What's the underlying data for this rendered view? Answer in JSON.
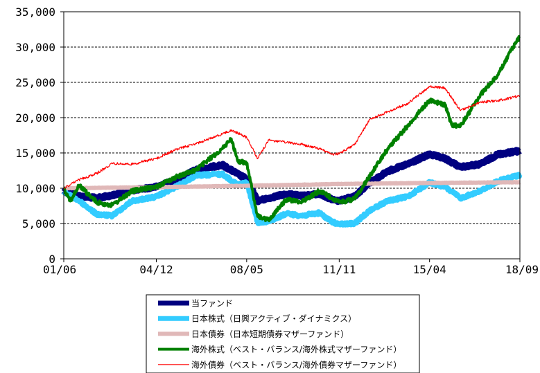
{
  "chart_data": {
    "type": "line",
    "title": "",
    "xlabel": "",
    "ylabel": "",
    "ylim": [
      0,
      35000
    ],
    "yticks": [
      0,
      5000,
      10000,
      15000,
      20000,
      25000,
      30000,
      35000
    ],
    "ytick_labels": [
      "0",
      "5,000",
      "10,000",
      "15,000",
      "20,000",
      "25,000",
      "30,000",
      "35,000"
    ],
    "x_start": "2001-06",
    "x_end": "2018-09",
    "xticks": [
      "2001-06",
      "2004-12",
      "2008-05",
      "2011-11",
      "2015-04",
      "2018-09"
    ],
    "xtick_labels": [
      "01/06",
      "04/12",
      "08/05",
      "11/11",
      "15/04",
      "18/09"
    ],
    "grid": "horizontal-dashed",
    "legend_position": "bottom",
    "series": [
      {
        "name": "当ファンド",
        "color": "#000080",
        "line_width": 9,
        "points": [
          [
            "2001-06",
            9600
          ],
          [
            "2002-01",
            8900
          ],
          [
            "2002-09",
            8600
          ],
          [
            "2003-04",
            9000
          ],
          [
            "2004-01",
            9700
          ],
          [
            "2004-12",
            10200
          ],
          [
            "2005-09",
            11200
          ],
          [
            "2006-06",
            12600
          ],
          [
            "2007-06",
            13300
          ],
          [
            "2008-01",
            12000
          ],
          [
            "2008-05",
            11300
          ],
          [
            "2008-10",
            8200
          ],
          [
            "2009-03",
            8600
          ],
          [
            "2009-11",
            9200
          ],
          [
            "2010-06",
            8900
          ],
          [
            "2011-02",
            9200
          ],
          [
            "2011-08",
            8400
          ],
          [
            "2011-11",
            8200
          ],
          [
            "2012-06",
            8900
          ],
          [
            "2013-01",
            10800
          ],
          [
            "2013-09",
            12400
          ],
          [
            "2014-06",
            13400
          ],
          [
            "2015-04",
            14800
          ],
          [
            "2015-11",
            14200
          ],
          [
            "2016-06",
            13000
          ],
          [
            "2017-03",
            13400
          ],
          [
            "2017-11",
            14800
          ],
          [
            "2018-09",
            15300
          ]
        ]
      },
      {
        "name": "日本株式（日興アクティブ・ダイナミクス）",
        "color": "#33ccff",
        "line_width": 7,
        "points": [
          [
            "2001-06",
            9500
          ],
          [
            "2002-01",
            8200
          ],
          [
            "2002-09",
            6300
          ],
          [
            "2003-04",
            6100
          ],
          [
            "2004-01",
            8200
          ],
          [
            "2004-12",
            8800
          ],
          [
            "2005-09",
            10200
          ],
          [
            "2006-06",
            11800
          ],
          [
            "2007-06",
            12000
          ],
          [
            "2008-01",
            10500
          ],
          [
            "2008-05",
            10800
          ],
          [
            "2008-10",
            5100
          ],
          [
            "2009-03",
            5300
          ],
          [
            "2009-11",
            6400
          ],
          [
            "2010-06",
            6100
          ],
          [
            "2011-02",
            6500
          ],
          [
            "2011-08",
            5200
          ],
          [
            "2011-11",
            4900
          ],
          [
            "2012-06",
            5000
          ],
          [
            "2013-01",
            6900
          ],
          [
            "2013-09",
            8200
          ],
          [
            "2014-06",
            8800
          ],
          [
            "2015-04",
            10800
          ],
          [
            "2015-11",
            10200
          ],
          [
            "2016-06",
            8600
          ],
          [
            "2017-03",
            9600
          ],
          [
            "2017-11",
            11000
          ],
          [
            "2018-09",
            11900
          ]
        ]
      },
      {
        "name": "日本債券（日本短期債券マザーファンド）",
        "color": "#e0b8b8",
        "line_width": 6,
        "points": [
          [
            "2001-06",
            10000
          ],
          [
            "2004-12",
            10150
          ],
          [
            "2008-05",
            10350
          ],
          [
            "2011-11",
            10600
          ],
          [
            "2015-04",
            10750
          ],
          [
            "2018-09",
            10850
          ]
        ]
      },
      {
        "name": "海外株式（ベスト・バランス/海外株式マザーファンド）",
        "color": "#008000",
        "line_width": 4,
        "points": [
          [
            "2001-06",
            10000
          ],
          [
            "2001-09",
            8200
          ],
          [
            "2002-01",
            10400
          ],
          [
            "2002-09",
            8000
          ],
          [
            "2003-04",
            7600
          ],
          [
            "2004-01",
            9600
          ],
          [
            "2004-12",
            10200
          ],
          [
            "2005-09",
            11600
          ],
          [
            "2006-06",
            12600
          ],
          [
            "2007-06",
            15600
          ],
          [
            "2007-10",
            17000
          ],
          [
            "2008-01",
            13800
          ],
          [
            "2008-05",
            13600
          ],
          [
            "2008-10",
            6000
          ],
          [
            "2009-03",
            5500
          ],
          [
            "2009-11",
            8400
          ],
          [
            "2010-06",
            8100
          ],
          [
            "2011-02",
            9600
          ],
          [
            "2011-08",
            8600
          ],
          [
            "2011-11",
            8000
          ],
          [
            "2012-06",
            8500
          ],
          [
            "2013-01",
            11800
          ],
          [
            "2013-09",
            15600
          ],
          [
            "2014-06",
            18800
          ],
          [
            "2015-04",
            22500
          ],
          [
            "2015-11",
            21800
          ],
          [
            "2016-02",
            19000
          ],
          [
            "2016-06",
            18800
          ],
          [
            "2017-03",
            23200
          ],
          [
            "2017-11",
            26000
          ],
          [
            "2018-05",
            29500
          ],
          [
            "2018-09",
            31500
          ]
        ]
      },
      {
        "name": "海外債券（ベスト・バランス/海外債券マザーファンド）",
        "color": "#ff0000",
        "line_width": 1.2,
        "points": [
          [
            "2001-06",
            10000
          ],
          [
            "2002-01",
            11200
          ],
          [
            "2002-09",
            12100
          ],
          [
            "2003-04",
            13500
          ],
          [
            "2004-01",
            13400
          ],
          [
            "2004-12",
            14200
          ],
          [
            "2005-09",
            15500
          ],
          [
            "2006-06",
            16300
          ],
          [
            "2007-06",
            17700
          ],
          [
            "2007-10",
            18200
          ],
          [
            "2008-01",
            17800
          ],
          [
            "2008-05",
            17200
          ],
          [
            "2008-10",
            14200
          ],
          [
            "2009-03",
            16800
          ],
          [
            "2009-11",
            16500
          ],
          [
            "2010-06",
            16200
          ],
          [
            "2011-02",
            15600
          ],
          [
            "2011-08",
            14800
          ],
          [
            "2011-11",
            14900
          ],
          [
            "2012-06",
            16200
          ],
          [
            "2013-01",
            19800
          ],
          [
            "2013-09",
            20800
          ],
          [
            "2014-06",
            22000
          ],
          [
            "2015-04",
            24400
          ],
          [
            "2015-11",
            24200
          ],
          [
            "2016-06",
            21000
          ],
          [
            "2017-03",
            22200
          ],
          [
            "2017-11",
            22400
          ],
          [
            "2018-09",
            23100
          ]
        ]
      }
    ]
  }
}
